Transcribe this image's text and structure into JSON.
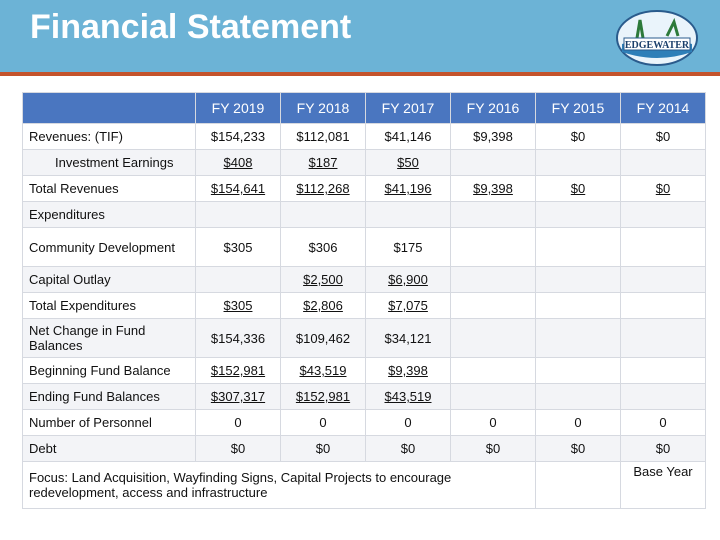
{
  "header": {
    "title": "Financial Statement",
    "logo_text": "EDGEWATER"
  },
  "table": {
    "columns": [
      "FY 2019",
      "FY 2018",
      "FY 2017",
      "FY 2016",
      "FY 2015",
      "FY 2014"
    ],
    "rows": [
      {
        "cells": [
          "Revenues: (TIF)",
          "$154,233",
          "$112,081",
          "$41,146",
          "$9,398",
          "$0",
          "$0"
        ]
      },
      {
        "cells": [
          "Investment Earnings",
          "$408",
          "$187",
          "$50",
          null,
          null,
          null
        ],
        "indent": true,
        "underline": true
      },
      {
        "cells": [
          "Total Revenues",
          "$154,641",
          "$112,268",
          "$41,196",
          "$9,398",
          "$0",
          "$0"
        ],
        "underline": true
      },
      {
        "cells": [
          "Expenditures",
          null,
          null,
          null,
          null,
          null,
          null
        ]
      },
      {
        "cells": [
          "Community Development",
          "$305",
          "$306",
          "$175",
          null,
          null,
          null
        ],
        "tall": true
      },
      {
        "cells": [
          "Capital Outlay",
          null,
          "$2,500",
          "$6,900",
          null,
          null,
          null
        ],
        "underline": true
      },
      {
        "cells": [
          "Total Expenditures",
          "$305",
          "$2,806",
          "$7,075",
          null,
          null,
          null
        ],
        "underline": true
      },
      {
        "cells": [
          "Net Change in Fund Balances",
          "$154,336",
          "$109,462",
          "$34,121",
          null,
          null,
          null
        ],
        "tall": true
      },
      {
        "cells": [
          "Beginning Fund Balance",
          "$152,981",
          "$43,519",
          "$9,398",
          null,
          null,
          null
        ],
        "underline": true
      },
      {
        "cells": [
          "Ending Fund Balances",
          "$307,317",
          "$152,981",
          "$43,519",
          null,
          null,
          null
        ],
        "underline": true
      },
      {
        "cells": [
          "Number of Personnel",
          "0",
          "0",
          "0",
          "0",
          "0",
          "0"
        ]
      },
      {
        "cells": [
          "Debt",
          "$0",
          "$0",
          "$0",
          "$0",
          "$0",
          "$0"
        ]
      }
    ],
    "footer": {
      "focus": "Focus: Land Acquisition, Wayfinding Signs, Capital Projects to encourage redevelopment, access and infrastructure",
      "base": "Base Year"
    }
  }
}
